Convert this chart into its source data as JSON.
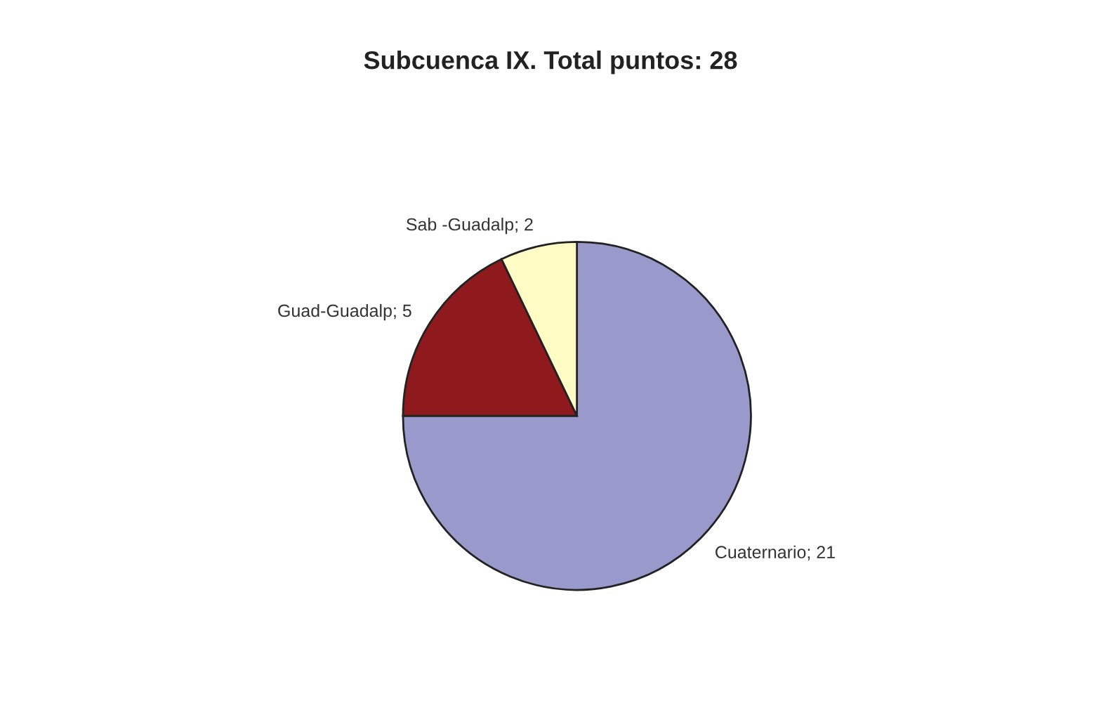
{
  "chart_data": {
    "type": "pie",
    "title": "Subcuenca IX. Total puntos: 28",
    "categories": [
      "Cuaternario; 21",
      "Guad-Guadalp; 5",
      "Sab -Guadalp; 2"
    ],
    "values": [
      21,
      5,
      2
    ],
    "colors": [
      "#9a99cc",
      "#8f1a1e",
      "#fefcc4"
    ],
    "legend": false
  }
}
